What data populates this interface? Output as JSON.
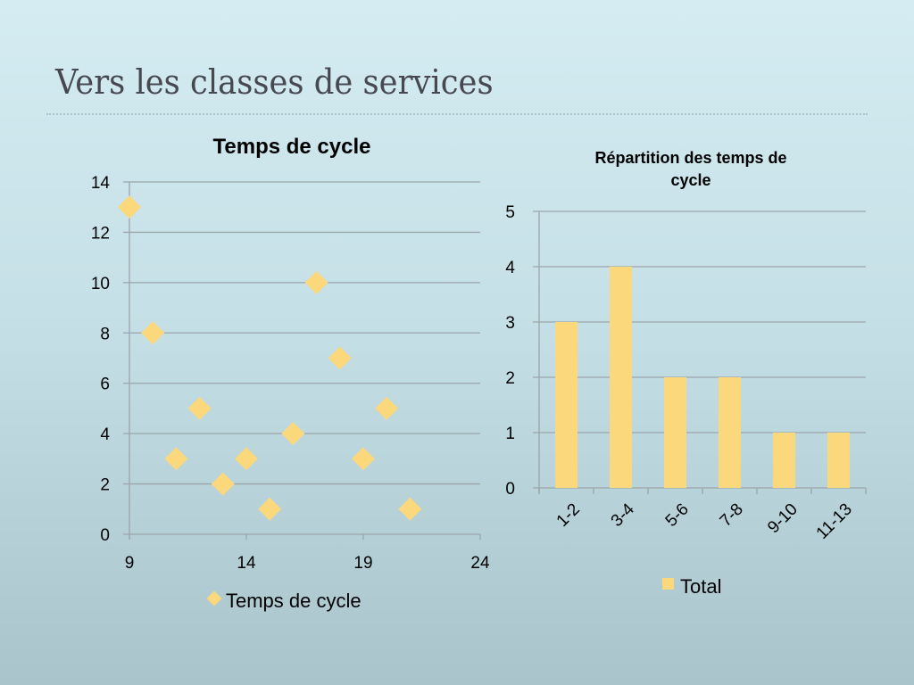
{
  "slide": {
    "title": "Vers les classes de services"
  },
  "colors": {
    "marker": "#fbd87c",
    "grid": "#9aa6aa",
    "axis": "#9aa6aa",
    "text": "#000000"
  },
  "chart_data": [
    {
      "type": "scatter",
      "title": "Temps de cycle",
      "xlabel": "",
      "ylabel": "",
      "xlim": [
        9,
        24
      ],
      "ylim": [
        0,
        14
      ],
      "xticks": [
        9,
        14,
        19,
        24
      ],
      "yticks": [
        0,
        2,
        4,
        6,
        8,
        10,
        12,
        14
      ],
      "grid": "horizontal",
      "legend": "bottom",
      "marker": "diamond",
      "series": [
        {
          "name": "Temps de cycle",
          "x": [
            9,
            10,
            11,
            12,
            13,
            14,
            15,
            16,
            17,
            18,
            19,
            20,
            21
          ],
          "y": [
            13,
            8,
            3,
            5,
            2,
            3,
            1,
            4,
            10,
            7,
            3,
            5,
            1
          ]
        }
      ]
    },
    {
      "type": "bar",
      "title": "Répartition des temps de cycle",
      "title_lines": [
        "Répartition des temps de",
        "cycle"
      ],
      "xlabel": "",
      "ylabel": "",
      "ylim": [
        0,
        5
      ],
      "yticks": [
        0,
        1,
        2,
        3,
        4,
        5
      ],
      "grid": "horizontal",
      "legend": "bottom",
      "categories": [
        "1-2",
        "3-4",
        "5-6",
        "7-8",
        "9-10",
        "11-13"
      ],
      "series": [
        {
          "name": "Total",
          "values": [
            3,
            4,
            2,
            2,
            1,
            1
          ]
        }
      ]
    }
  ]
}
